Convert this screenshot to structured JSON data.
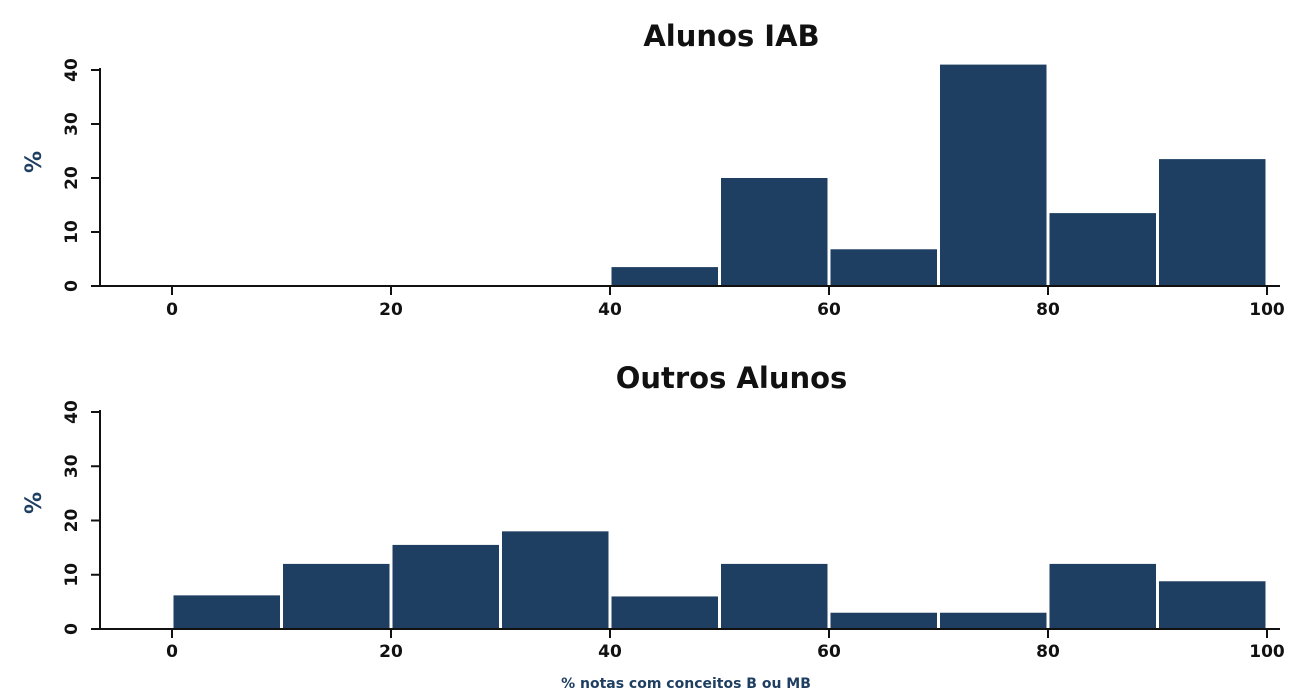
{
  "chart_data": [
    {
      "type": "bar",
      "title": "Alunos IAB",
      "ylabel": "%",
      "xlabel": "",
      "bins": [
        [
          0,
          10
        ],
        [
          10,
          20
        ],
        [
          20,
          30
        ],
        [
          30,
          40
        ],
        [
          40,
          50
        ],
        [
          50,
          60
        ],
        [
          60,
          70
        ],
        [
          70,
          80
        ],
        [
          80,
          90
        ],
        [
          90,
          100
        ]
      ],
      "values": [
        0,
        0,
        0,
        0,
        3.5,
        20,
        6.8,
        41,
        13.5,
        23.5
      ],
      "xticks": [
        "0",
        "20",
        "40",
        "60",
        "80",
        "100"
      ],
      "yticks": [
        "0",
        "10",
        "20",
        "30",
        "40"
      ],
      "xlim": [
        0,
        100
      ],
      "ylim": [
        0,
        40
      ]
    },
    {
      "type": "bar",
      "title": "Outros Alunos",
      "ylabel": "%",
      "xlabel": "% notas com conceitos B ou MB",
      "bins": [
        [
          0,
          10
        ],
        [
          10,
          20
        ],
        [
          20,
          30
        ],
        [
          30,
          40
        ],
        [
          40,
          50
        ],
        [
          50,
          60
        ],
        [
          60,
          70
        ],
        [
          70,
          80
        ],
        [
          80,
          90
        ],
        [
          90,
          100
        ]
      ],
      "values": [
        6.2,
        12,
        15.5,
        18,
        6,
        12,
        3,
        3,
        12,
        8.8
      ],
      "xticks": [
        "0",
        "20",
        "40",
        "60",
        "80",
        "100"
      ],
      "yticks": [
        "0",
        "10",
        "20",
        "30",
        "40"
      ],
      "xlim": [
        0,
        100
      ],
      "ylim": [
        0,
        40
      ]
    }
  ],
  "colors": {
    "bar": "#1f3f62",
    "axis": "#111111",
    "label": "#1f3f62"
  }
}
